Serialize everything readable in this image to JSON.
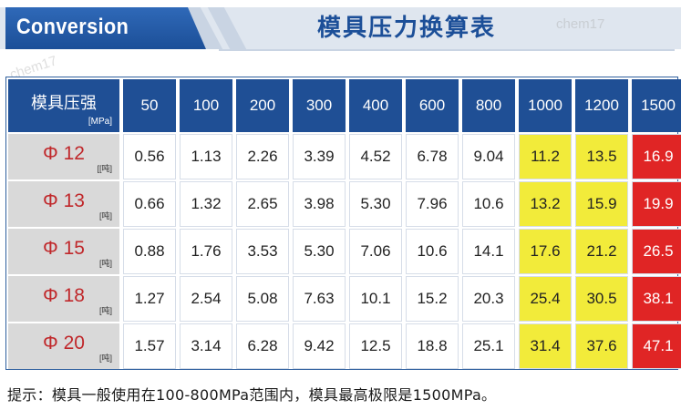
{
  "header": {
    "badge": "Conversion",
    "title": "模具压力换算表",
    "watermarks": [
      "chem17",
      "chem17"
    ]
  },
  "table": {
    "corner_label": "模具压强",
    "corner_unit": "[MPa]",
    "columns": [
      "50",
      "100",
      "200",
      "300",
      "400",
      "600",
      "800",
      "1000",
      "1200",
      "1500"
    ],
    "rows": [
      {
        "label": "Φ 12",
        "unit": "[[吨]",
        "values": [
          "0.56",
          "1.13",
          "2.26",
          "3.39",
          "4.52",
          "6.78",
          "9.04",
          "11.2",
          "13.5",
          "16.9"
        ]
      },
      {
        "label": "Φ 13",
        "unit": "[吨]",
        "values": [
          "0.66",
          "1.32",
          "2.65",
          "3.98",
          "5.30",
          "7.96",
          "10.6",
          "13.2",
          "15.9",
          "19.9"
        ]
      },
      {
        "label": "Φ 15",
        "unit": "[吨]",
        "values": [
          "0.88",
          "1.76",
          "3.53",
          "5.30",
          "7.06",
          "10.6",
          "14.1",
          "17.6",
          "21.2",
          "26.5"
        ]
      },
      {
        "label": "Φ 18",
        "unit": "[吨]",
        "values": [
          "1.27",
          "2.54",
          "5.08",
          "7.63",
          "10.1",
          "15.2",
          "20.3",
          "25.4",
          "30.5",
          "38.1"
        ]
      },
      {
        "label": "Φ 20",
        "unit": "[吨]",
        "values": [
          "1.57",
          "3.14",
          "6.28",
          "9.42",
          "12.5",
          "18.8",
          "25.1",
          "31.4",
          "37.6",
          "47.1"
        ]
      }
    ],
    "highlight_colors": {
      "yellow": "#f2eb3a",
      "red": "#e02525",
      "header": "#1f4f95",
      "rowhead": "#d9d9d9"
    }
  },
  "footer": {
    "note": "提示：模具一般使用在100-800MPa范围内，模具最高极限是1500MPa。"
  }
}
